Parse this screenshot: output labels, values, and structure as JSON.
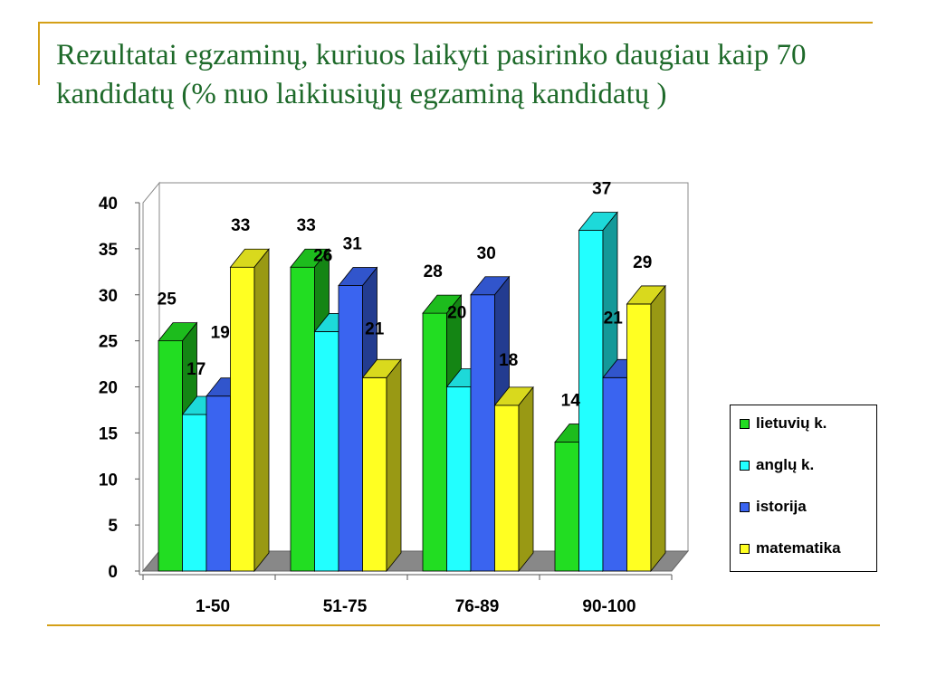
{
  "slide": {
    "title": "Rezultatai egzaminų, kuriuos laikyti pasirinko daugiau kaip 70 kandidatų (% nuo laikiusiųjų egzaminą kandidatų )"
  },
  "chart_data": {
    "type": "bar",
    "title": "",
    "xlabel": "",
    "ylabel": "",
    "ylim": [
      0,
      40
    ],
    "yticks": [
      "0",
      "5",
      "10",
      "15",
      "20",
      "25",
      "30",
      "35",
      "40"
    ],
    "categories": [
      "1-50",
      "51-75",
      "76-89",
      "90-100"
    ],
    "series": [
      {
        "name": "lietuvių k.",
        "color": "#22dd22",
        "values": [
          25,
          33,
          28,
          14
        ]
      },
      {
        "name": "anglų k.",
        "color": "#22ffff",
        "values": [
          17,
          26,
          20,
          37
        ]
      },
      {
        "name": "istorija",
        "color": "#3a64f0",
        "values": [
          19,
          31,
          30,
          21
        ]
      },
      {
        "name": "matematika",
        "color": "#ffff22",
        "values": [
          33,
          21,
          18,
          29
        ]
      }
    ],
    "legend": "right",
    "grid": false,
    "three_d": true
  }
}
